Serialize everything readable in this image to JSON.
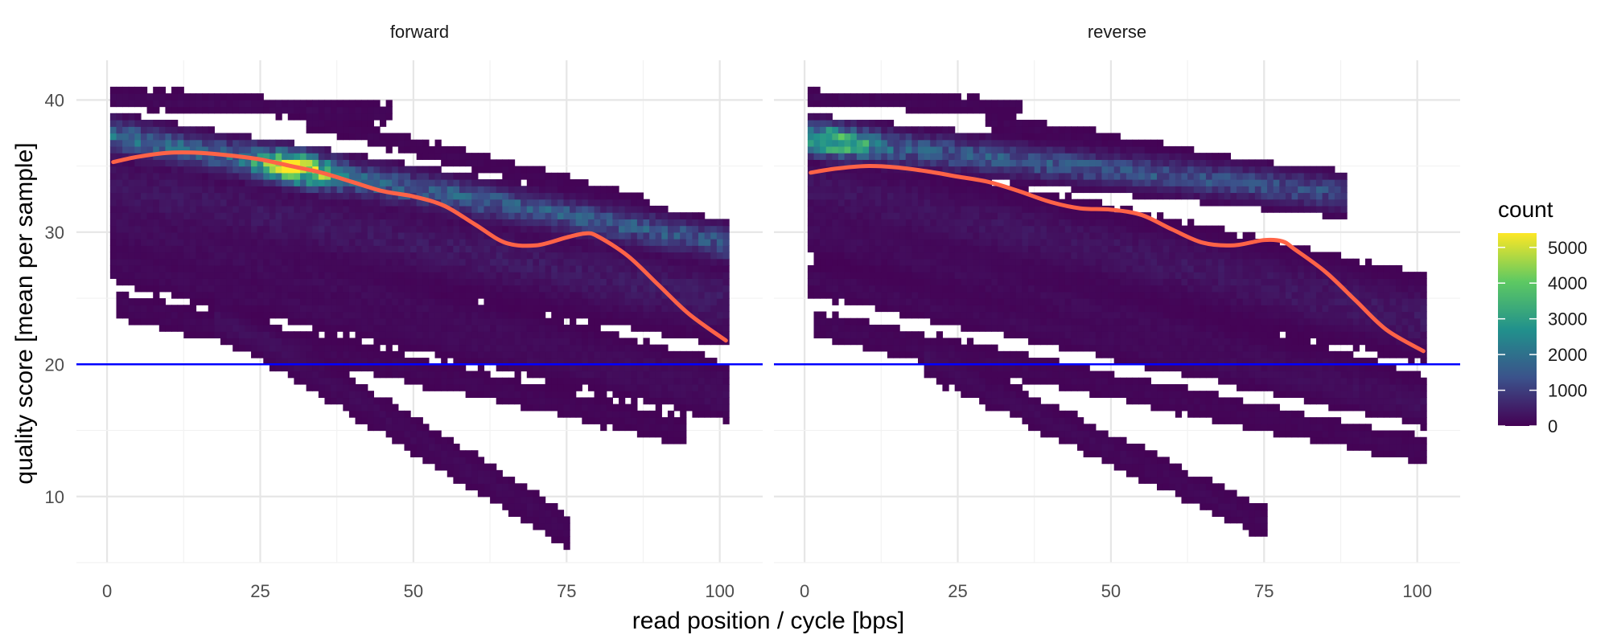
{
  "chart_data": {
    "type": "heatmap",
    "xlabel": "read position / cycle [bps]",
    "ylabel": "quality score [mean per sample]",
    "xlim": [
      -5,
      107
    ],
    "ylim": [
      5,
      43
    ],
    "x_ticks": [
      0,
      25,
      50,
      75,
      100
    ],
    "y_ticks": [
      10,
      20,
      30,
      40
    ],
    "grid": true,
    "reference_line": {
      "y": 20,
      "color": "#0000ff"
    },
    "smooth_line_color": "#ff6347",
    "legend": {
      "title": "count",
      "position": "right",
      "ticks": [
        0,
        1000,
        2000,
        3000,
        4000,
        5000
      ],
      "max": 5400,
      "colors": [
        "#440154",
        "#3b528b",
        "#21918c",
        "#5ec962",
        "#fde725"
      ]
    },
    "panels": [
      {
        "title": "forward",
        "smooth": [
          [
            1,
            35.3
          ],
          [
            5,
            35.7
          ],
          [
            10,
            36.0
          ],
          [
            15,
            36.0
          ],
          [
            20,
            35.8
          ],
          [
            25,
            35.5
          ],
          [
            30,
            35.0
          ],
          [
            35,
            34.5
          ],
          [
            40,
            33.8
          ],
          [
            45,
            33.1
          ],
          [
            50,
            32.7
          ],
          [
            55,
            32.0
          ],
          [
            60,
            30.6
          ],
          [
            65,
            29.2
          ],
          [
            70,
            29.0
          ],
          [
            75,
            29.6
          ],
          [
            78,
            29.9
          ],
          [
            80,
            29.7
          ],
          [
            85,
            28.2
          ],
          [
            90,
            26.0
          ],
          [
            95,
            23.8
          ],
          [
            101,
            21.8
          ]
        ],
        "density_bands": [
          {
            "x": [
              1,
              101
            ],
            "y": [
              37.3,
              29.2
            ],
            "width": 1.8,
            "count": [
              1800,
              1400
            ],
            "peak": [
              31,
              5400
            ]
          },
          {
            "x": [
              1,
              101
            ],
            "y": [
              33.5,
              24.8
            ],
            "width": 3.5,
            "count": [
              350,
              420
            ]
          },
          {
            "x": [
              1,
              101
            ],
            "y": [
              30.2,
              18.5
            ],
            "width": 2.2,
            "count": [
              180,
              150
            ]
          },
          {
            "x": [
              1,
              101
            ],
            "y": [
              27.5,
              17.0
            ],
            "width": 1.6,
            "count": [
              150,
              130
            ]
          },
          {
            "x": [
              2,
              94
            ],
            "y": [
              24.5,
              15.0
            ],
            "width": 1.5,
            "count": [
              110,
              90
            ]
          },
          {
            "x": [
              18,
              75
            ],
            "y": [
              23.8,
              7.5
            ],
            "width": 1.8,
            "count": [
              160,
              120
            ]
          },
          {
            "x": [
              1,
              46
            ],
            "y": [
              40.2,
              39.0
            ],
            "width": 1.0,
            "count": [
              140,
              110
            ]
          },
          {
            "x": [
              33,
              88
            ],
            "y": [
              38.5,
              32.0
            ],
            "width": 1.0,
            "count": [
              90,
              90
            ]
          }
        ]
      },
      {
        "title": "reverse",
        "smooth": [
          [
            1,
            34.5
          ],
          [
            5,
            34.8
          ],
          [
            10,
            35.0
          ],
          [
            15,
            34.9
          ],
          [
            20,
            34.6
          ],
          [
            25,
            34.2
          ],
          [
            30,
            33.8
          ],
          [
            35,
            33.1
          ],
          [
            40,
            32.3
          ],
          [
            45,
            31.8
          ],
          [
            50,
            31.7
          ],
          [
            55,
            31.3
          ],
          [
            60,
            30.2
          ],
          [
            65,
            29.2
          ],
          [
            70,
            29.0
          ],
          [
            75,
            29.4
          ],
          [
            78,
            29.3
          ],
          [
            80,
            28.7
          ],
          [
            85,
            27.0
          ],
          [
            90,
            24.8
          ],
          [
            95,
            22.6
          ],
          [
            101,
            21.0
          ]
        ],
        "density_bands": [
          {
            "x": [
              1,
              88
            ],
            "y": [
              37.1,
              32.9
            ],
            "width": 1.8,
            "count": [
              1600,
              1200
            ],
            "peak": [
              5,
              3800
            ]
          },
          {
            "x": [
              1,
              101
            ],
            "y": [
              33.5,
              23.5
            ],
            "width": 3.5,
            "count": [
              300,
              380
            ]
          },
          {
            "x": [
              1,
              101
            ],
            "y": [
              30.0,
              17.5
            ],
            "width": 2.2,
            "count": [
              170,
              140
            ]
          },
          {
            "x": [
              1,
              101
            ],
            "y": [
              26.5,
              16.5
            ],
            "width": 1.6,
            "count": [
              150,
              120
            ]
          },
          {
            "x": [
              2,
              101
            ],
            "y": [
              23.0,
              13.5
            ],
            "width": 1.5,
            "count": [
              110,
              90
            ]
          },
          {
            "x": [
              20,
              75
            ],
            "y": [
              20.3,
              8.0
            ],
            "width": 1.6,
            "count": [
              150,
              110
            ]
          },
          {
            "x": [
              1,
              35
            ],
            "y": [
              40.2,
              39.5
            ],
            "width": 0.8,
            "count": [
              120,
              100
            ]
          },
          {
            "x": [
              30,
              88
            ],
            "y": [
              38.5,
              33.5
            ],
            "width": 1.0,
            "count": [
              90,
              90
            ]
          }
        ]
      }
    ]
  }
}
